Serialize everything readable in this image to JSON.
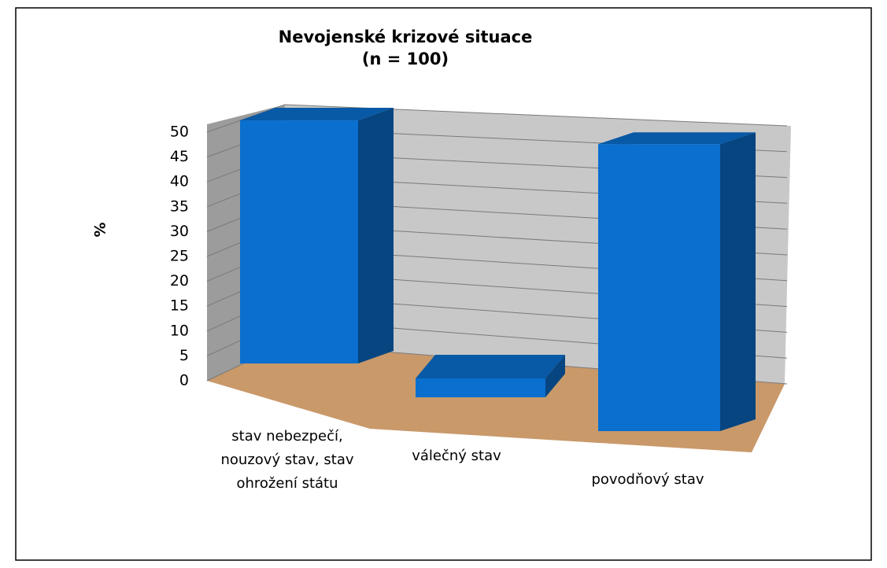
{
  "chart_data": {
    "type": "bar3d",
    "title": "Nevojenské krizové situace",
    "subtitle": "(n = 100)",
    "y_label": "%",
    "categories": [
      "stav nebezpečí, nouzový stav, stav ohrožení státu",
      "válečný stav",
      "povodňový stav"
    ],
    "values": [
      49,
      2,
      49
    ],
    "color": "#0a6fcf",
    "ylim": [
      0,
      50
    ],
    "yticks": [
      0,
      5,
      10,
      15,
      20,
      25,
      30,
      35,
      40,
      45,
      50
    ],
    "grid": true
  }
}
